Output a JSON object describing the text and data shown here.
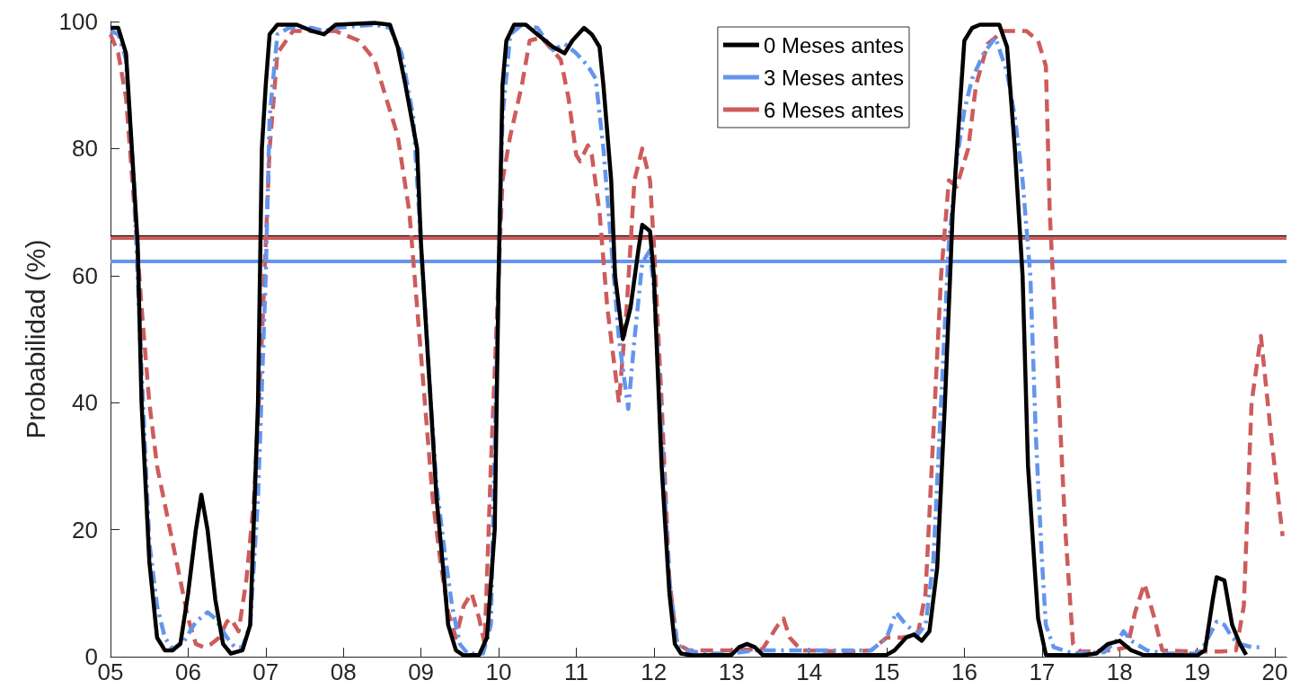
{
  "chart_data": {
    "type": "line",
    "ylabel": "Probabilidad (%)",
    "xlim": [
      5,
      20.15
    ],
    "xticks": [
      {
        "value": 5,
        "label": "05"
      },
      {
        "value": 6,
        "label": "06"
      },
      {
        "value": 7,
        "label": "07"
      },
      {
        "value": 8,
        "label": "08"
      },
      {
        "value": 9,
        "label": "09"
      },
      {
        "value": 10,
        "label": "10"
      },
      {
        "value": 11,
        "label": "11"
      },
      {
        "value": 12,
        "label": "12"
      },
      {
        "value": 13,
        "label": "13"
      },
      {
        "value": 14,
        "label": "14"
      },
      {
        "value": 15,
        "label": "15"
      },
      {
        "value": 16,
        "label": "16"
      },
      {
        "value": 17,
        "label": "17"
      },
      {
        "value": 18,
        "label": "18"
      },
      {
        "value": 19,
        "label": "19"
      },
      {
        "value": 20,
        "label": "20"
      }
    ],
    "ylim": [
      0,
      100
    ],
    "yticks": [
      0,
      20,
      40,
      60,
      80,
      100
    ],
    "grid": false,
    "legend": "top right",
    "marker": "none",
    "series": [
      {
        "name": "0 Meses antes",
        "color": "#000000",
        "line_style": "solid",
        "x": [
          5,
          5.1,
          5.2,
          5.35,
          5.4,
          5.5,
          5.6,
          5.7,
          5.8,
          5.9,
          6,
          6.1,
          6.17,
          6.25,
          6.35,
          6.45,
          6.55,
          6.7,
          6.8,
          6.9,
          6.95,
          7,
          7.05,
          7.15,
          7.4,
          7.6,
          7.75,
          7.9,
          8.4,
          8.6,
          8.7,
          8.8,
          8.95,
          9,
          9.1,
          9.2,
          9.3,
          9.35,
          9.45,
          9.55,
          9.75,
          9.85,
          9.95,
          10,
          10.05,
          10.1,
          10.2,
          10.35,
          10.5,
          10.7,
          10.85,
          10.95,
          11.1,
          11.2,
          11.3,
          11.35,
          11.45,
          11.5,
          11.6,
          11.7,
          11.8,
          11.85,
          11.95,
          12,
          12.1,
          12.2,
          12.27,
          12.35,
          12.5,
          13,
          13.1,
          13.2,
          13.3,
          13.4,
          14,
          15,
          15.1,
          15.25,
          15.35,
          15.45,
          15.55,
          15.65,
          15.75,
          15.85,
          15.95,
          16,
          16.1,
          16.2,
          16.45,
          16.55,
          16.65,
          16.75,
          16.82,
          16.9,
          16.95,
          17.05,
          17.5,
          17.7,
          17.85,
          18,
          18.15,
          18.3,
          19,
          19.1,
          19.2,
          19.25,
          19.35,
          19.45,
          19.55,
          19.63
        ],
        "values": [
          99,
          99,
          95,
          65,
          40,
          15,
          3,
          1,
          1,
          2,
          10,
          20,
          25.5,
          20,
          9,
          2,
          0.5,
          1,
          5,
          40,
          80,
          90,
          98,
          99.5,
          99.5,
          98.5,
          98,
          99.5,
          99.8,
          99.5,
          96,
          90,
          80,
          65,
          45,
          25,
          12,
          5,
          1,
          0.2,
          0.3,
          3,
          20,
          60,
          90,
          97,
          99.5,
          99.5,
          98,
          96,
          95,
          97,
          99,
          98,
          96,
          90,
          75,
          60,
          50,
          55,
          64,
          68,
          67,
          60,
          30,
          10,
          2,
          0.5,
          0.2,
          0.3,
          1.5,
          2,
          1.5,
          0.3,
          0.2,
          0.3,
          1,
          3,
          3.5,
          2.5,
          4,
          14,
          40,
          70,
          88,
          97,
          99,
          99.5,
          99.5,
          96,
          80,
          60,
          30,
          15,
          6,
          0.3,
          0.2,
          0.5,
          2,
          2.5,
          1,
          0.3,
          0.2,
          1,
          9,
          12.5,
          12,
          5,
          2,
          0.3
        ]
      },
      {
        "name": "3 Meses antes",
        "color": "#6495ed",
        "line_style": "dashdot",
        "x": [
          5,
          5.1,
          5.2,
          5.3,
          5.4,
          5.5,
          5.6,
          5.7,
          5.8,
          5.95,
          6.1,
          6.25,
          6.35,
          6.5,
          6.6,
          6.7,
          6.8,
          6.9,
          7,
          7.05,
          7.15,
          7.3,
          7.6,
          7.75,
          7.9,
          8.4,
          8.6,
          8.75,
          8.9,
          9,
          9.1,
          9.2,
          9.3,
          9.4,
          9.5,
          9.6,
          9.8,
          9.9,
          10,
          10.05,
          10.15,
          10.3,
          10.5,
          10.7,
          10.85,
          11,
          11.15,
          11.25,
          11.35,
          11.45,
          11.55,
          11.67,
          11.75,
          11.85,
          11.95,
          12,
          12.1,
          12.2,
          12.3,
          12.4,
          12.7,
          13,
          13.3,
          14,
          14.8,
          15,
          15.12,
          15.25,
          15.4,
          15.5,
          15.6,
          15.7,
          15.8,
          15.9,
          16,
          16.1,
          16.25,
          16.4,
          16.55,
          16.65,
          16.75,
          16.85,
          16.92,
          17,
          17.05,
          17.15,
          17.4,
          17.8,
          18,
          18.05,
          18.15,
          18.35,
          18.6,
          19,
          19.1,
          19.25,
          19.35,
          19.45,
          19.55,
          19.7,
          19.85
        ],
        "values": [
          98.5,
          98,
          94,
          75,
          45,
          18,
          8,
          3,
          1.2,
          2.5,
          5.5,
          7,
          6,
          3,
          1.5,
          1.5,
          5,
          25,
          60,
          85,
          98,
          99,
          99,
          98.5,
          99,
          99.5,
          99,
          95,
          85,
          65,
          45,
          27,
          17,
          8,
          2,
          0.5,
          0.5,
          5,
          60,
          85,
          98,
          99.5,
          99,
          95.5,
          96.5,
          95,
          93,
          91,
          80,
          65,
          50,
          39,
          50,
          62,
          64,
          58,
          35,
          12,
          2,
          1,
          0.5,
          0.5,
          1,
          1,
          1,
          3,
          7,
          5,
          3.5,
          5,
          15,
          40,
          65,
          78,
          86,
          91,
          95,
          97.5,
          92,
          85,
          75,
          60,
          35,
          15,
          5,
          1.5,
          0.5,
          0.7,
          3,
          4,
          2.5,
          1,
          0.5,
          0.5,
          2,
          5.5,
          5,
          3,
          2,
          1.5,
          1.5
        ]
      },
      {
        "name": "6 Meses antes",
        "color": "#cd5c5c",
        "line_style": "dashed",
        "x": [
          5,
          5.1,
          5.2,
          5.3,
          5.4,
          5.5,
          5.6,
          5.7,
          5.8,
          5.9,
          6,
          6.1,
          6.2,
          6.3,
          6.4,
          6.5,
          6.55,
          6.65,
          6.75,
          6.85,
          6.95,
          7.05,
          7.15,
          7.35,
          7.6,
          7.9,
          8.2,
          8.4,
          8.55,
          8.7,
          8.85,
          8.95,
          9.05,
          9.15,
          9.25,
          9.35,
          9.45,
          9.55,
          9.65,
          9.75,
          9.82,
          9.9,
          10,
          10.05,
          10.15,
          10.3,
          10.4,
          10.55,
          10.8,
          10.9,
          11,
          11.05,
          11.15,
          11.2,
          11.3,
          11.4,
          11.5,
          11.55,
          11.65,
          11.75,
          11.85,
          11.95,
          12,
          12.1,
          12.2,
          12.3,
          12.45,
          13,
          13.4,
          13.6,
          13.67,
          13.75,
          13.9,
          14.5,
          14.8,
          15,
          15.2,
          15.4,
          15.5,
          15.6,
          15.7,
          15.8,
          15.9,
          16.05,
          16.15,
          16.3,
          16.5,
          16.8,
          16.95,
          17.05,
          17.1,
          17.2,
          17.3,
          17.4,
          17.5,
          17.9,
          18.1,
          18.2,
          18.32,
          18.45,
          18.55,
          19,
          19.3,
          19.5,
          19.6,
          19.7,
          19.82,
          19.95,
          20.1
        ],
        "values": [
          98,
          95,
          88,
          72,
          55,
          40,
          30,
          24,
          18,
          12,
          6,
          2,
          1.5,
          2,
          3,
          5.5,
          6,
          4,
          12,
          25,
          50,
          80,
          95,
          98.5,
          98.5,
          98.5,
          97,
          94,
          88,
          82,
          70,
          55,
          40,
          25,
          15,
          7,
          3,
          8,
          10,
          6,
          2,
          30,
          60,
          75,
          82,
          90,
          97,
          97.5,
          94,
          88,
          79,
          78,
          80.5,
          79,
          70,
          55,
          45,
          40,
          55,
          75,
          80,
          75,
          65,
          40,
          12,
          2,
          1,
          1,
          1.2,
          5,
          6,
          3,
          1,
          0.8,
          1,
          3,
          3,
          3.5,
          10,
          35,
          60,
          75,
          74,
          80,
          90,
          96.5,
          98.5,
          98.5,
          97,
          93,
          70,
          45,
          20,
          2,
          0.8,
          1,
          1.5,
          7,
          11.5,
          6,
          1,
          0.8,
          0.8,
          1,
          8,
          40,
          50.5,
          35,
          19
        ]
      }
    ],
    "ref_lines": [
      {
        "axis": "y",
        "value": 66.3,
        "color": "#000000"
      },
      {
        "axis": "y",
        "value": 65.9,
        "color": "#cd5c5c"
      },
      {
        "axis": "y",
        "value": 62.2,
        "color": "#6495ed"
      }
    ]
  }
}
